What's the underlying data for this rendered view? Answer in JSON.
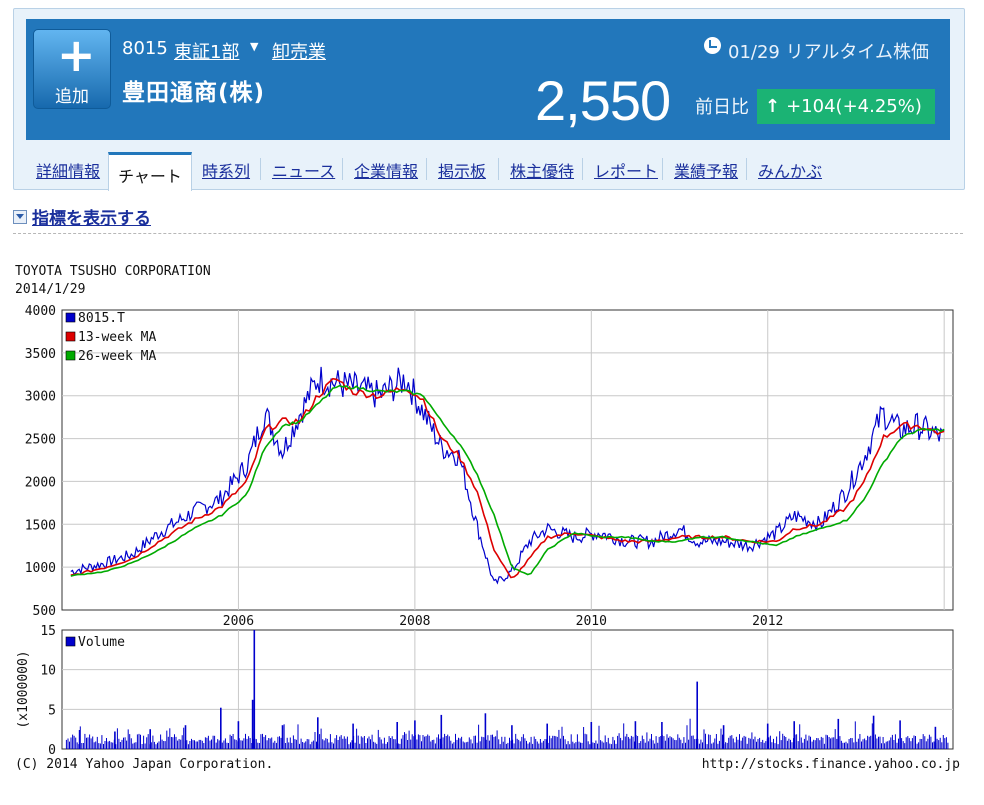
{
  "header": {
    "add_button": {
      "icon": "plus-icon",
      "label": "追加"
    },
    "code": "8015",
    "market": "東証1部",
    "industry": "卸売業",
    "company": "豊田通商(株)",
    "realtime_label": "01/29 リアルタイム株価",
    "price": "2,550",
    "prev_label": "前日比",
    "change": "+104",
    "change_pct": "(+4.25%)",
    "colors": {
      "header_bg": "#2277bb",
      "change_bg": "#1bb374"
    }
  },
  "tabs": [
    {
      "label": "詳細情報",
      "active": false
    },
    {
      "label": "チャート",
      "active": true
    },
    {
      "label": "時系列",
      "active": false
    },
    {
      "label": "ニュース",
      "active": false
    },
    {
      "label": "企業情報",
      "active": false
    },
    {
      "label": "掲示板",
      "active": false
    },
    {
      "label": "株主優待",
      "active": false
    },
    {
      "label": "レポート",
      "active": false
    },
    {
      "label": "業績予報",
      "active": false
    },
    {
      "label": "みんかぶ",
      "active": false
    }
  ],
  "indicator_toggle": "指標を表示する",
  "chart_data": [
    {
      "type": "line",
      "title": "TOYOTA TSUSHO CORPORATION",
      "subtitle": "2014/1/29",
      "x_ticks": [
        "2006",
        "2008",
        "2010",
        "2012"
      ],
      "y_ticks": [
        "4000",
        "3500",
        "3000",
        "2500",
        "2000",
        "1500",
        "1000",
        "500"
      ],
      "ylim": [
        500,
        4000
      ],
      "grid": true,
      "legend_position": "top-left",
      "series": [
        {
          "name": "8015.T",
          "color": "#0000cc",
          "points": [
            [
              2004.1,
              950
            ],
            [
              2004.5,
              1050
            ],
            [
              2004.8,
              1150
            ],
            [
              2005.1,
              1400
            ],
            [
              2005.5,
              1650
            ],
            [
              2005.8,
              1800
            ],
            [
              2006.1,
              2200
            ],
            [
              2006.3,
              2800
            ],
            [
              2006.5,
              2350
            ],
            [
              2006.7,
              2800
            ],
            [
              2006.9,
              3200
            ],
            [
              2007.1,
              3150
            ],
            [
              2007.3,
              3100
            ],
            [
              2007.6,
              3000
            ],
            [
              2007.9,
              3200
            ],
            [
              2008.1,
              2800
            ],
            [
              2008.3,
              2400
            ],
            [
              2008.5,
              2300
            ],
            [
              2008.7,
              1500
            ],
            [
              2008.9,
              800
            ],
            [
              2009.1,
              950
            ],
            [
              2009.3,
              1300
            ],
            [
              2009.5,
              1450
            ],
            [
              2009.8,
              1350
            ],
            [
              2010.1,
              1400
            ],
            [
              2010.4,
              1300
            ],
            [
              2010.7,
              1300
            ],
            [
              2011.0,
              1450
            ],
            [
              2011.2,
              1300
            ],
            [
              2011.5,
              1300
            ],
            [
              2011.8,
              1250
            ],
            [
              2012.1,
              1400
            ],
            [
              2012.3,
              1600
            ],
            [
              2012.6,
              1500
            ],
            [
              2012.9,
              1900
            ],
            [
              2013.1,
              2300
            ],
            [
              2013.3,
              2800
            ],
            [
              2013.5,
              2600
            ],
            [
              2013.7,
              2650
            ],
            [
              2014.0,
              2500
            ]
          ]
        },
        {
          "name": "13-week MA",
          "color": "#dd0000",
          "points": [
            [
              2004.1,
              900
            ],
            [
              2004.5,
              1000
            ],
            [
              2004.8,
              1100
            ],
            [
              2005.1,
              1300
            ],
            [
              2005.5,
              1550
            ],
            [
              2005.8,
              1700
            ],
            [
              2006.1,
              2000
            ],
            [
              2006.3,
              2600
            ],
            [
              2006.5,
              2700
            ],
            [
              2006.7,
              2700
            ],
            [
              2006.9,
              3000
            ],
            [
              2007.1,
              3200
            ],
            [
              2007.3,
              3050
            ],
            [
              2007.6,
              3000
            ],
            [
              2007.9,
              3100
            ],
            [
              2008.1,
              2950
            ],
            [
              2008.3,
              2500
            ],
            [
              2008.5,
              2300
            ],
            [
              2008.7,
              1900
            ],
            [
              2008.9,
              1200
            ],
            [
              2009.1,
              850
            ],
            [
              2009.3,
              1100
            ],
            [
              2009.5,
              1350
            ],
            [
              2009.8,
              1400
            ],
            [
              2010.1,
              1350
            ],
            [
              2010.4,
              1300
            ],
            [
              2010.7,
              1300
            ],
            [
              2011.0,
              1350
            ],
            [
              2011.2,
              1350
            ],
            [
              2011.5,
              1350
            ],
            [
              2011.8,
              1300
            ],
            [
              2012.1,
              1300
            ],
            [
              2012.3,
              1450
            ],
            [
              2012.6,
              1500
            ],
            [
              2012.9,
              1700
            ],
            [
              2013.1,
              2000
            ],
            [
              2013.3,
              2500
            ],
            [
              2013.5,
              2650
            ],
            [
              2013.7,
              2650
            ],
            [
              2014.0,
              2550
            ]
          ]
        },
        {
          "name": "26-week MA",
          "color": "#00aa00",
          "points": [
            [
              2004.1,
              900
            ],
            [
              2004.5,
              950
            ],
            [
              2004.8,
              1050
            ],
            [
              2005.1,
              1200
            ],
            [
              2005.5,
              1450
            ],
            [
              2005.8,
              1600
            ],
            [
              2006.1,
              1850
            ],
            [
              2006.3,
              2400
            ],
            [
              2006.5,
              2650
            ],
            [
              2006.7,
              2700
            ],
            [
              2006.9,
              2900
            ],
            [
              2007.1,
              3100
            ],
            [
              2007.3,
              3100
            ],
            [
              2007.6,
              3050
            ],
            [
              2007.9,
              3050
            ],
            [
              2008.1,
              3000
            ],
            [
              2008.3,
              2700
            ],
            [
              2008.5,
              2450
            ],
            [
              2008.7,
              2100
            ],
            [
              2008.9,
              1600
            ],
            [
              2009.1,
              1000
            ],
            [
              2009.3,
              900
            ],
            [
              2009.5,
              1200
            ],
            [
              2009.8,
              1400
            ],
            [
              2010.1,
              1350
            ],
            [
              2010.4,
              1350
            ],
            [
              2010.7,
              1300
            ],
            [
              2011.0,
              1300
            ],
            [
              2011.2,
              1350
            ],
            [
              2011.5,
              1350
            ],
            [
              2011.8,
              1300
            ],
            [
              2012.1,
              1250
            ],
            [
              2012.3,
              1350
            ],
            [
              2012.6,
              1450
            ],
            [
              2012.9,
              1550
            ],
            [
              2013.1,
              1800
            ],
            [
              2013.3,
              2200
            ],
            [
              2013.5,
              2500
            ],
            [
              2013.7,
              2600
            ],
            [
              2014.0,
              2600
            ]
          ]
        }
      ]
    },
    {
      "type": "bar",
      "ylabel": "(x1000000)",
      "y_ticks": [
        "15",
        "10",
        "5",
        "0"
      ],
      "ylim": [
        0,
        15
      ],
      "grid": true,
      "legend_position": "top-left",
      "series": [
        {
          "name": "Volume",
          "color": "#0000cc",
          "spikes": [
            [
              2004.2,
              2.4
            ],
            [
              2004.6,
              2.2
            ],
            [
              2005.0,
              2.5
            ],
            [
              2005.4,
              3.0
            ],
            [
              2005.8,
              5.2
            ],
            [
              2006.0,
              3.5
            ],
            [
              2006.18,
              15.0
            ],
            [
              2006.16,
              6.2
            ],
            [
              2006.5,
              3.0
            ],
            [
              2006.9,
              4.0
            ],
            [
              2007.3,
              3.2
            ],
            [
              2007.8,
              3.4
            ],
            [
              2008.0,
              3.6
            ],
            [
              2008.3,
              4.3
            ],
            [
              2008.8,
              4.5
            ],
            [
              2009.1,
              3.0
            ],
            [
              2009.5,
              3.2
            ],
            [
              2010.0,
              3.4
            ],
            [
              2010.5,
              3.5
            ],
            [
              2010.8,
              3.4
            ],
            [
              2011.2,
              8.5
            ],
            [
              2011.5,
              3.0
            ],
            [
              2012.0,
              3.2
            ],
            [
              2012.3,
              3.5
            ],
            [
              2012.8,
              3.8
            ],
            [
              2013.2,
              4.2
            ],
            [
              2013.5,
              3.6
            ],
            [
              2013.9,
              2.8
            ]
          ],
          "base_level": 1.2
        }
      ]
    }
  ],
  "footer": {
    "copyright": "(C) 2014 Yahoo Japan Corporation.",
    "url": "http://stocks.finance.yahoo.co.jp"
  }
}
